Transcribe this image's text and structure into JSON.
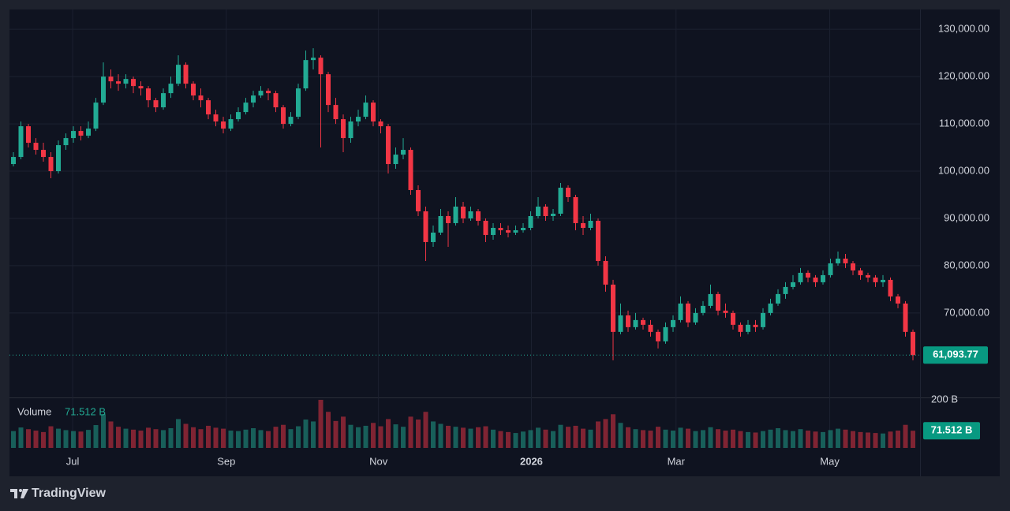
{
  "chart_data": {
    "type": "candlestick",
    "up_color": "#22ab94",
    "down_color": "#f23645",
    "ylim": [
      52300,
      134200
    ],
    "yticks": [
      {
        "value": 70000,
        "label": "70,000.00"
      },
      {
        "value": 80000,
        "label": "80,000.00"
      },
      {
        "value": 90000,
        "label": "90,000.00"
      },
      {
        "value": 100000,
        "label": "100,000.00"
      },
      {
        "value": 110000,
        "label": "110,000.00"
      },
      {
        "value": 120000,
        "label": "120,000.00"
      },
      {
        "value": 130000,
        "label": "130,000.00"
      }
    ],
    "xticks": [
      {
        "value": 7.9,
        "label": "Jul"
      },
      {
        "value": 28.4,
        "label": "Sep"
      },
      {
        "value": 48.7,
        "label": "Nov"
      },
      {
        "value": 69.1,
        "label": "2026"
      },
      {
        "value": 88.4,
        "label": "Mar"
      },
      {
        "value": 108.9,
        "label": "May"
      }
    ],
    "grid": true,
    "price_label": {
      "value": 61093.77,
      "label": "61,093.77"
    },
    "ohlc": [
      [
        101500,
        104000,
        101000,
        103000
      ],
      [
        103000,
        110500,
        102500,
        109500
      ],
      [
        109500,
        110000,
        105000,
        106000
      ],
      [
        106000,
        107000,
        103500,
        104500
      ],
      [
        104500,
        106000,
        102000,
        103000
      ],
      [
        103000,
        104000,
        98500,
        100000
      ],
      [
        100000,
        106500,
        99500,
        105500
      ],
      [
        105500,
        108000,
        104500,
        107000
      ],
      [
        107000,
        109500,
        106000,
        108500
      ],
      [
        108500,
        109500,
        106500,
        107500
      ],
      [
        107500,
        110500,
        107000,
        109000
      ],
      [
        109000,
        115500,
        108500,
        114500
      ],
      [
        114500,
        123000,
        114000,
        120000
      ],
      [
        120000,
        121500,
        117500,
        119000
      ],
      [
        119000,
        120500,
        117000,
        118500
      ],
      [
        118500,
        120500,
        117500,
        119500
      ],
      [
        119500,
        120000,
        116500,
        118000
      ],
      [
        118000,
        119000,
        116000,
        117500
      ],
      [
        117500,
        118000,
        113500,
        115000
      ],
      [
        115000,
        115500,
        112500,
        113500
      ],
      [
        113500,
        117500,
        113000,
        116500
      ],
      [
        116500,
        120000,
        115500,
        118500
      ],
      [
        118500,
        124500,
        118000,
        122500
      ],
      [
        122500,
        123000,
        117500,
        118500
      ],
      [
        118500,
        119000,
        115000,
        116000
      ],
      [
        116000,
        117500,
        113500,
        115000
      ],
      [
        115000,
        115500,
        111000,
        112000
      ],
      [
        112000,
        113000,
        109500,
        110500
      ],
      [
        110500,
        111500,
        108000,
        109000
      ],
      [
        109000,
        112000,
        108500,
        111000
      ],
      [
        111000,
        113500,
        110500,
        112500
      ],
      [
        112500,
        115500,
        112000,
        114500
      ],
      [
        114500,
        117000,
        113500,
        116000
      ],
      [
        116000,
        118000,
        115500,
        117000
      ],
      [
        117000,
        117500,
        115000,
        116500
      ],
      [
        116500,
        117000,
        112500,
        113500
      ],
      [
        113500,
        114000,
        109000,
        110000
      ],
      [
        110000,
        112500,
        109500,
        111500
      ],
      [
        111500,
        118500,
        111000,
        117500
      ],
      [
        117500,
        125500,
        117000,
        123500
      ],
      [
        123500,
        126000,
        121500,
        124000
      ],
      [
        124000,
        124500,
        105000,
        120500
      ],
      [
        120500,
        121000,
        112500,
        114000
      ],
      [
        114000,
        115500,
        110000,
        111000
      ],
      [
        111000,
        112000,
        104000,
        107000
      ],
      [
        107000,
        111500,
        106000,
        110500
      ],
      [
        110500,
        113000,
        109500,
        111500
      ],
      [
        111500,
        116000,
        111000,
        114500
      ],
      [
        114500,
        115000,
        109500,
        110500
      ],
      [
        110500,
        111000,
        108000,
        109500
      ],
      [
        109500,
        110000,
        99500,
        101500
      ],
      [
        101500,
        105000,
        100500,
        103500
      ],
      [
        103500,
        107000,
        102500,
        104500
      ],
      [
        104500,
        105000,
        95000,
        96000
      ],
      [
        96000,
        97000,
        90500,
        91500
      ],
      [
        91500,
        92500,
        81000,
        85000
      ],
      [
        85000,
        88500,
        84000,
        87000
      ],
      [
        87000,
        92000,
        86500,
        90500
      ],
      [
        90500,
        91500,
        84000,
        89000
      ],
      [
        89000,
        94500,
        88500,
        92500
      ],
      [
        92500,
        93500,
        89000,
        90000
      ],
      [
        90000,
        92500,
        89500,
        91500
      ],
      [
        91500,
        92000,
        88500,
        89500
      ],
      [
        89500,
        90000,
        85000,
        86500
      ],
      [
        86500,
        89000,
        85500,
        88000
      ],
      [
        88000,
        89000,
        86500,
        87500
      ],
      [
        87500,
        88500,
        86000,
        87000
      ],
      [
        87000,
        88500,
        86500,
        87500
      ],
      [
        87500,
        89000,
        87000,
        88000
      ],
      [
        88000,
        91500,
        87500,
        90500
      ],
      [
        90500,
        94500,
        90000,
        92500
      ],
      [
        92500,
        93000,
        89500,
        90500
      ],
      [
        90500,
        92000,
        89500,
        91000
      ],
      [
        91000,
        97500,
        90500,
        96500
      ],
      [
        96500,
        97000,
        93500,
        94500
      ],
      [
        94500,
        95000,
        87500,
        89000
      ],
      [
        89000,
        90500,
        86500,
        88000
      ],
      [
        88000,
        91000,
        87500,
        89500
      ],
      [
        89500,
        90000,
        80000,
        81000
      ],
      [
        81000,
        82000,
        74500,
        76000
      ],
      [
        76000,
        77000,
        60000,
        66000
      ],
      [
        66000,
        72000,
        65500,
        69500
      ],
      [
        69500,
        70500,
        66000,
        67000
      ],
      [
        67000,
        70000,
        66500,
        68500
      ],
      [
        68500,
        69000,
        66500,
        67500
      ],
      [
        67500,
        68500,
        65000,
        66000
      ],
      [
        66000,
        66500,
        62500,
        64000
      ],
      [
        64000,
        68000,
        63500,
        67000
      ],
      [
        67000,
        69500,
        66000,
        68500
      ],
      [
        68500,
        73500,
        68000,
        72000
      ],
      [
        72000,
        72500,
        67000,
        68000
      ],
      [
        68000,
        71000,
        67500,
        70000
      ],
      [
        70000,
        72500,
        69500,
        71500
      ],
      [
        71500,
        76000,
        71000,
        74000
      ],
      [
        74000,
        74500,
        69500,
        70500
      ],
      [
        70500,
        72000,
        69000,
        70000
      ],
      [
        70000,
        70500,
        66500,
        67500
      ],
      [
        67500,
        68000,
        65000,
        66000
      ],
      [
        66000,
        68500,
        65500,
        67500
      ],
      [
        67500,
        68500,
        66000,
        67000
      ],
      [
        67000,
        71000,
        66500,
        70000
      ],
      [
        70000,
        73000,
        69500,
        72000
      ],
      [
        72000,
        75000,
        71500,
        74000
      ],
      [
        74000,
        76500,
        73000,
        75500
      ],
      [
        75500,
        78000,
        75000,
        76500
      ],
      [
        76500,
        79500,
        76000,
        78500
      ],
      [
        78500,
        79000,
        76500,
        77500
      ],
      [
        77500,
        78000,
        75500,
        76500
      ],
      [
        76500,
        79000,
        76000,
        78000
      ],
      [
        78000,
        81500,
        77500,
        80500
      ],
      [
        80500,
        83000,
        80000,
        81500
      ],
      [
        81500,
        82500,
        79500,
        80500
      ],
      [
        80500,
        81000,
        78000,
        79000
      ],
      [
        79000,
        79500,
        77000,
        78000
      ],
      [
        78000,
        78500,
        76500,
        77500
      ],
      [
        77500,
        78000,
        75500,
        76500
      ],
      [
        76500,
        78000,
        75500,
        77000
      ],
      [
        77000,
        77500,
        72500,
        73500
      ],
      [
        73500,
        74000,
        71000,
        72000
      ],
      [
        72000,
        72500,
        65000,
        66000
      ],
      [
        66000,
        66500,
        60000,
        61093.77
      ]
    ],
    "volume": {
      "title": "Volume",
      "ylim": [
        0,
        200
      ],
      "yticks": [
        {
          "value": 200,
          "label": "200 B"
        }
      ],
      "last_label": {
        "value": 71.512,
        "label": "71.512 B"
      },
      "values": [
        70,
        85,
        78,
        72,
        66,
        90,
        80,
        74,
        70,
        68,
        75,
        95,
        140,
        110,
        88,
        80,
        76,
        72,
        84,
        78,
        74,
        82,
        120,
        100,
        86,
        78,
        92,
        84,
        80,
        72,
        70,
        76,
        82,
        74,
        70,
        88,
        96,
        78,
        90,
        118,
        110,
        200,
        150,
        112,
        130,
        96,
        86,
        92,
        104,
        90,
        120,
        98,
        88,
        130,
        118,
        150,
        110,
        100,
        92,
        88,
        84,
        80,
        86,
        90,
        76,
        70,
        66,
        62,
        68,
        74,
        84,
        76,
        70,
        96,
        88,
        92,
        80,
        76,
        110,
        120,
        140,
        104,
        86,
        78,
        74,
        72,
        88,
        76,
        72,
        84,
        80,
        70,
        74,
        86,
        78,
        72,
        76,
        70,
        66,
        64,
        70,
        76,
        82,
        74,
        70,
        78,
        72,
        68,
        66,
        74,
        80,
        76,
        70,
        66,
        64,
        62,
        60,
        68,
        72,
        96,
        71.512
      ]
    }
  },
  "footer": {
    "brand": "TradingView"
  }
}
